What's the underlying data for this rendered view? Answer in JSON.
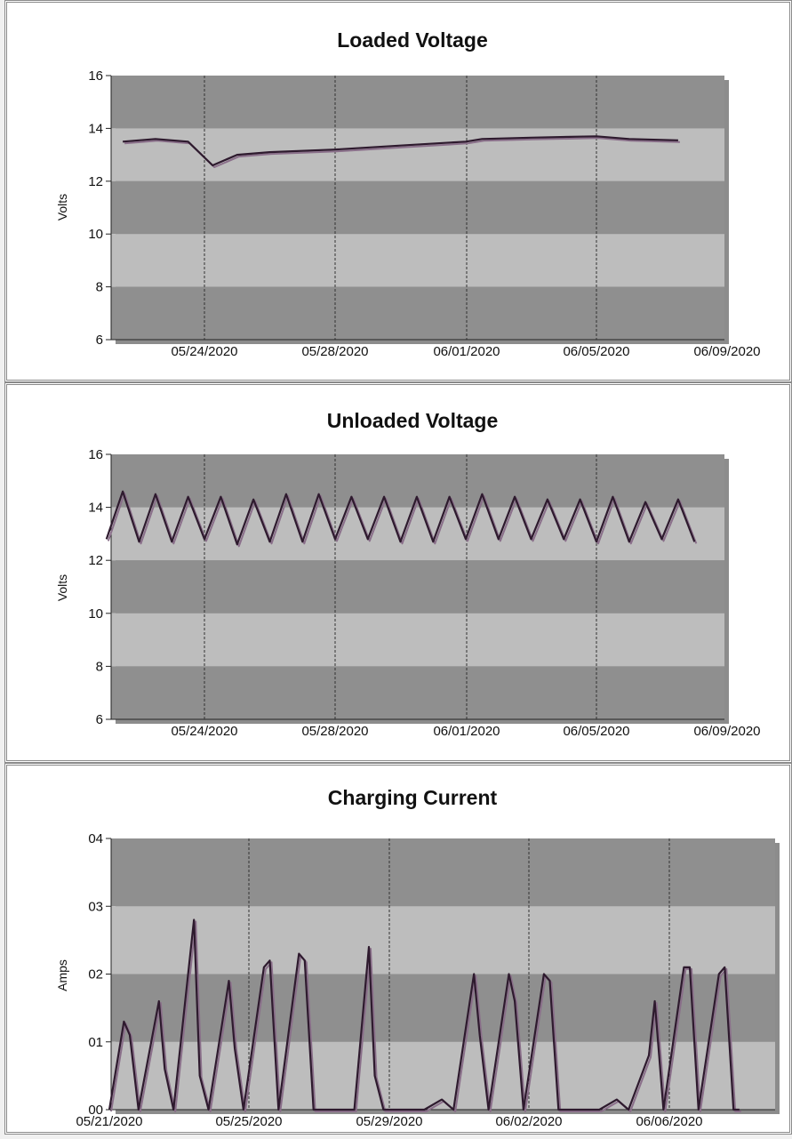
{
  "charts": [
    {
      "title": "Loaded Voltage",
      "ylabel": "Volts",
      "y_ticks": [
        "16",
        "14",
        "12",
        "10",
        "8",
        "6"
      ],
      "x_ticks": [
        "05/24/2020",
        "05/28/2020",
        "06/01/2020",
        "06/05/2020",
        "06/09/2020"
      ]
    },
    {
      "title": "Unloaded Voltage",
      "ylabel": "Volts",
      "y_ticks": [
        "16",
        "14",
        "12",
        "10",
        "8",
        "6"
      ],
      "x_ticks": [
        "05/24/2020",
        "05/28/2020",
        "06/01/2020",
        "06/05/2020",
        "06/09/2020"
      ]
    },
    {
      "title": "Charging Current",
      "ylabel": "Amps",
      "y_ticks": [
        "04",
        "03",
        "02",
        "01",
        "00"
      ],
      "x_ticks": [
        "05/21/2020",
        "05/25/2020",
        "05/29/2020",
        "06/02/2020",
        "06/06/2020"
      ]
    }
  ],
  "colors": {
    "band_dark": "#8f8f8f",
    "band_light": "#bdbdbd",
    "series_line": "#2e1a2e",
    "series_shadow": "#8a6f8a"
  },
  "chart_data": [
    {
      "type": "line",
      "title": "Loaded Voltage",
      "ylabel": "Volts",
      "xlabel": "",
      "ylim": [
        6,
        16
      ],
      "xlim": [
        "05/21/2020",
        "06/09/2020"
      ],
      "grid": "vertical dashed lines at date ticks; horizontal alternating bands",
      "x": [
        "05/21/2020 12:00",
        "05/22/2020 12:00",
        "05/23/2020 12:00",
        "05/24/2020 06:00",
        "05/25/2020",
        "05/26/2020",
        "05/28/2020",
        "05/30/2020",
        "06/01/2020",
        "06/01/2020 12:00",
        "06/03/2020",
        "06/05/2020",
        "06/06/2020",
        "06/07/2020 12:00"
      ],
      "values": [
        13.5,
        13.6,
        13.5,
        12.6,
        13.0,
        13.1,
        13.2,
        13.35,
        13.5,
        13.6,
        13.65,
        13.7,
        13.6,
        13.55
      ]
    },
    {
      "type": "line",
      "title": "Unloaded Voltage",
      "ylabel": "Volts",
      "xlabel": "",
      "ylim": [
        6,
        16
      ],
      "xlim": [
        "05/21/2020",
        "06/09/2020"
      ],
      "grid": "vertical dashed lines at date ticks; horizontal alternating bands",
      "pattern": "daily cycle, one peak per day 05/21/2020 to 06/07/2020",
      "x": [
        "05/21/2020",
        "05/21/2020 12:00",
        "05/22/2020",
        "05/22/2020 12:00",
        "05/23/2020",
        "05/23/2020 12:00",
        "05/24/2020",
        "05/24/2020 12:00",
        "05/25/2020",
        "05/25/2020 12:00",
        "05/26/2020",
        "05/26/2020 12:00",
        "05/27/2020",
        "05/27/2020 12:00",
        "05/28/2020",
        "05/28/2020 12:00",
        "05/29/2020",
        "05/29/2020 12:00",
        "05/30/2020",
        "05/30/2020 12:00",
        "05/31/2020",
        "05/31/2020 12:00",
        "06/01/2020",
        "06/01/2020 12:00",
        "06/02/2020",
        "06/02/2020 12:00",
        "06/03/2020",
        "06/03/2020 12:00",
        "06/04/2020",
        "06/04/2020 12:00",
        "06/05/2020",
        "06/05/2020 12:00",
        "06/06/2020",
        "06/06/2020 12:00",
        "06/07/2020",
        "06/07/2020 12:00",
        "06/08/2020"
      ],
      "values": [
        12.8,
        14.6,
        12.7,
        14.5,
        12.7,
        14.4,
        12.8,
        14.4,
        12.6,
        14.3,
        12.7,
        14.5,
        12.7,
        14.5,
        12.8,
        14.4,
        12.8,
        14.4,
        12.7,
        14.4,
        12.7,
        14.4,
        12.8,
        14.5,
        12.8,
        14.4,
        12.8,
        14.3,
        12.8,
        14.3,
        12.7,
        14.4,
        12.7,
        14.2,
        12.8,
        14.3,
        12.7
      ]
    },
    {
      "type": "line",
      "title": "Charging Current",
      "ylabel": "Amps",
      "xlabel": "",
      "ylim": [
        0,
        4
      ],
      "xlim": [
        "05/21/2020",
        "06/09/2020"
      ],
      "grid": "vertical dashed lines at date ticks; horizontal alternating bands",
      "pattern": "daily charging peaks, zero overnight",
      "x": [
        "05/21/2020",
        "05/21/2020 10:00",
        "05/21/2020 14:00",
        "05/21/2020 20:00",
        "05/22/2020 10:00",
        "05/22/2020 14:00",
        "05/22/2020 20:00",
        "05/23/2020 10:00",
        "05/23/2020 14:00",
        "05/23/2020 20:00",
        "05/24/2020 10:00",
        "05/24/2020 14:00",
        "05/24/2020 20:00",
        "05/25/2020 10:00",
        "05/25/2020 14:00",
        "05/25/2020 20:00",
        "05/26/2020 10:00",
        "05/26/2020 14:00",
        "05/26/2020 20:00",
        "05/27/2020",
        "05/28/2020",
        "05/28/2020 10:00",
        "05/28/2020 14:00",
        "05/28/2020 20:00",
        "05/30/2020",
        "05/30/2020 12:00",
        "05/30/2020 20:00",
        "05/31/2020 10:00",
        "05/31/2020 14:00",
        "05/31/2020 20:00",
        "06/01/2020 10:00",
        "06/01/2020 14:00",
        "06/01/2020 20:00",
        "06/02/2020 10:00",
        "06/02/2020 14:00",
        "06/02/2020 20:00",
        "06/04/2020",
        "06/04/2020 12:00",
        "06/04/2020 20:00",
        "06/05/2020 10:00",
        "06/05/2020 14:00",
        "06/05/2020 20:00",
        "06/06/2020 10:00",
        "06/06/2020 14:00",
        "06/06/2020 20:00",
        "06/07/2020 10:00",
        "06/07/2020 14:00",
        "06/07/2020 20:00",
        "06/08/2020"
      ],
      "values": [
        0.0,
        1.3,
        1.1,
        0.0,
        1.6,
        0.6,
        0.0,
        2.8,
        0.5,
        0.0,
        1.9,
        0.9,
        0.0,
        2.1,
        2.2,
        0.0,
        2.3,
        2.2,
        0.0,
        0.0,
        0.0,
        2.4,
        0.5,
        0.0,
        0.0,
        0.15,
        0.0,
        2.0,
        1.1,
        0.0,
        2.0,
        1.6,
        0.0,
        2.0,
        1.9,
        0.0,
        0.0,
        0.15,
        0.0,
        0.8,
        1.6,
        0.0,
        2.1,
        2.1,
        0.0,
        2.0,
        2.1,
        0.0,
        0.0
      ]
    }
  ]
}
